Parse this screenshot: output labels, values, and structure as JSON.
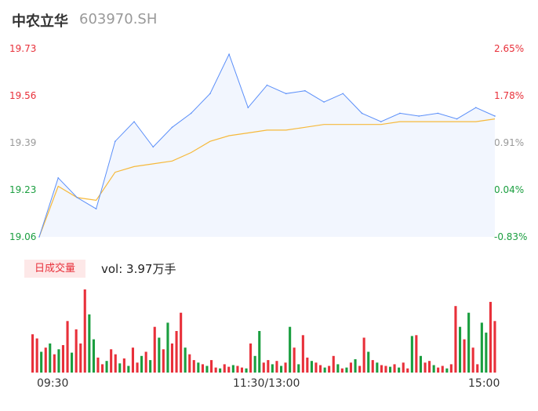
{
  "header": {
    "name": "中农立华",
    "code": "603970.SH"
  },
  "price_axis": {
    "labels": [
      "19.73",
      "19.56",
      "19.39",
      "19.23",
      "19.06"
    ]
  },
  "pct_axis": {
    "labels": [
      "2.65%",
      "1.78%",
      "0.91%",
      "0.04%",
      "-0.83%"
    ]
  },
  "volume": {
    "tab_label": "日成交量",
    "vol_label": "vol: 3.97万手"
  },
  "time_axis": {
    "labels": [
      "09:30",
      "11:30/13:00",
      "15:00"
    ]
  },
  "colors": {
    "price": "#5b8ff9",
    "avg": "#f6b93b",
    "up": "#e8303a",
    "down": "#1a9e3f",
    "area": "#f2f6fe"
  },
  "chart_data": [
    {
      "type": "line",
      "title": "",
      "ylim": [
        19.06,
        19.73
      ],
      "x": [
        "09:30",
        "09:40",
        "09:50",
        "10:00",
        "10:10",
        "10:20",
        "10:30",
        "10:40",
        "10:50",
        "11:00",
        "11:10",
        "11:20",
        "11:30/13:00",
        "13:10",
        "13:20",
        "13:30",
        "13:40",
        "13:50",
        "14:00",
        "14:10",
        "14:20",
        "14:30",
        "14:40",
        "14:50",
        "15:00"
      ],
      "series": [
        {
          "name": "",
          "key": "price",
          "values": [
            19.06,
            19.27,
            19.2,
            19.16,
            19.4,
            19.47,
            19.38,
            19.45,
            19.5,
            19.57,
            19.71,
            19.52,
            19.6,
            19.57,
            19.58,
            19.54,
            19.57,
            19.5,
            19.47,
            19.5,
            19.49,
            19.5,
            19.48,
            19.52,
            19.49
          ]
        },
        {
          "name": "",
          "key": "avg",
          "values": [
            19.06,
            19.24,
            19.2,
            19.19,
            19.29,
            19.31,
            19.32,
            19.33,
            19.36,
            19.4,
            19.42,
            19.43,
            19.44,
            19.44,
            19.45,
            19.46,
            19.46,
            19.46,
            19.46,
            19.47,
            19.47,
            19.47,
            19.47,
            19.47,
            19.48
          ]
        }
      ]
    },
    {
      "type": "bar",
      "title": "",
      "ylim": [
        0,
        1
      ],
      "values": [
        {
          "v": 0.46,
          "up": true
        },
        {
          "v": 0.41,
          "up": true
        },
        {
          "v": 0.25,
          "up": false
        },
        {
          "v": 0.3,
          "up": true
        },
        {
          "v": 0.35,
          "up": false
        },
        {
          "v": 0.22,
          "up": true
        },
        {
          "v": 0.28,
          "up": false
        },
        {
          "v": 0.33,
          "up": true
        },
        {
          "v": 0.62,
          "up": true
        },
        {
          "v": 0.24,
          "up": false
        },
        {
          "v": 0.52,
          "up": true
        },
        {
          "v": 0.35,
          "up": true
        },
        {
          "v": 1.0,
          "up": true
        },
        {
          "v": 0.7,
          "up": false
        },
        {
          "v": 0.4,
          "up": false
        },
        {
          "v": 0.18,
          "up": true
        },
        {
          "v": 0.1,
          "up": true
        },
        {
          "v": 0.14,
          "up": false
        },
        {
          "v": 0.28,
          "up": true
        },
        {
          "v": 0.22,
          "up": true
        },
        {
          "v": 0.11,
          "up": false
        },
        {
          "v": 0.17,
          "up": true
        },
        {
          "v": 0.08,
          "up": false
        },
        {
          "v": 0.3,
          "up": true
        },
        {
          "v": 0.12,
          "up": true
        },
        {
          "v": 0.2,
          "up": false
        },
        {
          "v": 0.25,
          "up": true
        },
        {
          "v": 0.15,
          "up": false
        },
        {
          "v": 0.55,
          "up": true
        },
        {
          "v": 0.42,
          "up": false
        },
        {
          "v": 0.28,
          "up": true
        },
        {
          "v": 0.6,
          "up": false
        },
        {
          "v": 0.35,
          "up": true
        },
        {
          "v": 0.5,
          "up": true
        },
        {
          "v": 0.72,
          "up": true
        },
        {
          "v": 0.3,
          "up": false
        },
        {
          "v": 0.22,
          "up": true
        },
        {
          "v": 0.15,
          "up": true
        },
        {
          "v": 0.12,
          "up": false
        },
        {
          "v": 0.1,
          "up": true
        },
        {
          "v": 0.08,
          "up": false
        },
        {
          "v": 0.15,
          "up": true
        },
        {
          "v": 0.06,
          "up": true
        },
        {
          "v": 0.05,
          "up": false
        },
        {
          "v": 0.1,
          "up": true
        },
        {
          "v": 0.07,
          "up": true
        },
        {
          "v": 0.09,
          "up": false
        },
        {
          "v": 0.08,
          "up": true
        },
        {
          "v": 0.06,
          "up": true
        },
        {
          "v": 0.05,
          "up": false
        },
        {
          "v": 0.35,
          "up": true
        },
        {
          "v": 0.2,
          "up": false
        },
        {
          "v": 0.5,
          "up": false
        },
        {
          "v": 0.12,
          "up": true
        },
        {
          "v": 0.15,
          "up": true
        },
        {
          "v": 0.1,
          "up": false
        },
        {
          "v": 0.14,
          "up": true
        },
        {
          "v": 0.08,
          "up": false
        },
        {
          "v": 0.12,
          "up": true
        },
        {
          "v": 0.55,
          "up": false
        },
        {
          "v": 0.3,
          "up": true
        },
        {
          "v": 0.1,
          "up": false
        },
        {
          "v": 0.45,
          "up": true
        },
        {
          "v": 0.18,
          "up": true
        },
        {
          "v": 0.14,
          "up": false
        },
        {
          "v": 0.12,
          "up": true
        },
        {
          "v": 0.09,
          "up": true
        },
        {
          "v": 0.06,
          "up": false
        },
        {
          "v": 0.08,
          "up": true
        },
        {
          "v": 0.2,
          "up": true
        },
        {
          "v": 0.1,
          "up": false
        },
        {
          "v": 0.05,
          "up": true
        },
        {
          "v": 0.06,
          "up": false
        },
        {
          "v": 0.12,
          "up": true
        },
        {
          "v": 0.16,
          "up": false
        },
        {
          "v": 0.08,
          "up": true
        },
        {
          "v": 0.42,
          "up": true
        },
        {
          "v": 0.25,
          "up": false
        },
        {
          "v": 0.15,
          "up": true
        },
        {
          "v": 0.12,
          "up": false
        },
        {
          "v": 0.09,
          "up": true
        },
        {
          "v": 0.08,
          "up": true
        },
        {
          "v": 0.07,
          "up": false
        },
        {
          "v": 0.1,
          "up": true
        },
        {
          "v": 0.06,
          "up": false
        },
        {
          "v": 0.12,
          "up": true
        },
        {
          "v": 0.05,
          "up": true
        },
        {
          "v": 0.44,
          "up": false
        },
        {
          "v": 0.45,
          "up": true
        },
        {
          "v": 0.2,
          "up": false
        },
        {
          "v": 0.12,
          "up": true
        },
        {
          "v": 0.14,
          "up": true
        },
        {
          "v": 0.09,
          "up": false
        },
        {
          "v": 0.06,
          "up": true
        },
        {
          "v": 0.08,
          "up": true
        },
        {
          "v": 0.05,
          "up": false
        },
        {
          "v": 0.1,
          "up": true
        },
        {
          "v": 0.8,
          "up": true
        },
        {
          "v": 0.55,
          "up": false
        },
        {
          "v": 0.4,
          "up": true
        },
        {
          "v": 0.72,
          "up": false
        },
        {
          "v": 0.3,
          "up": true
        },
        {
          "v": 0.1,
          "up": true
        },
        {
          "v": 0.6,
          "up": false
        },
        {
          "v": 0.48,
          "up": false
        },
        {
          "v": 0.85,
          "up": true
        },
        {
          "v": 0.62,
          "up": true
        }
      ]
    }
  ]
}
